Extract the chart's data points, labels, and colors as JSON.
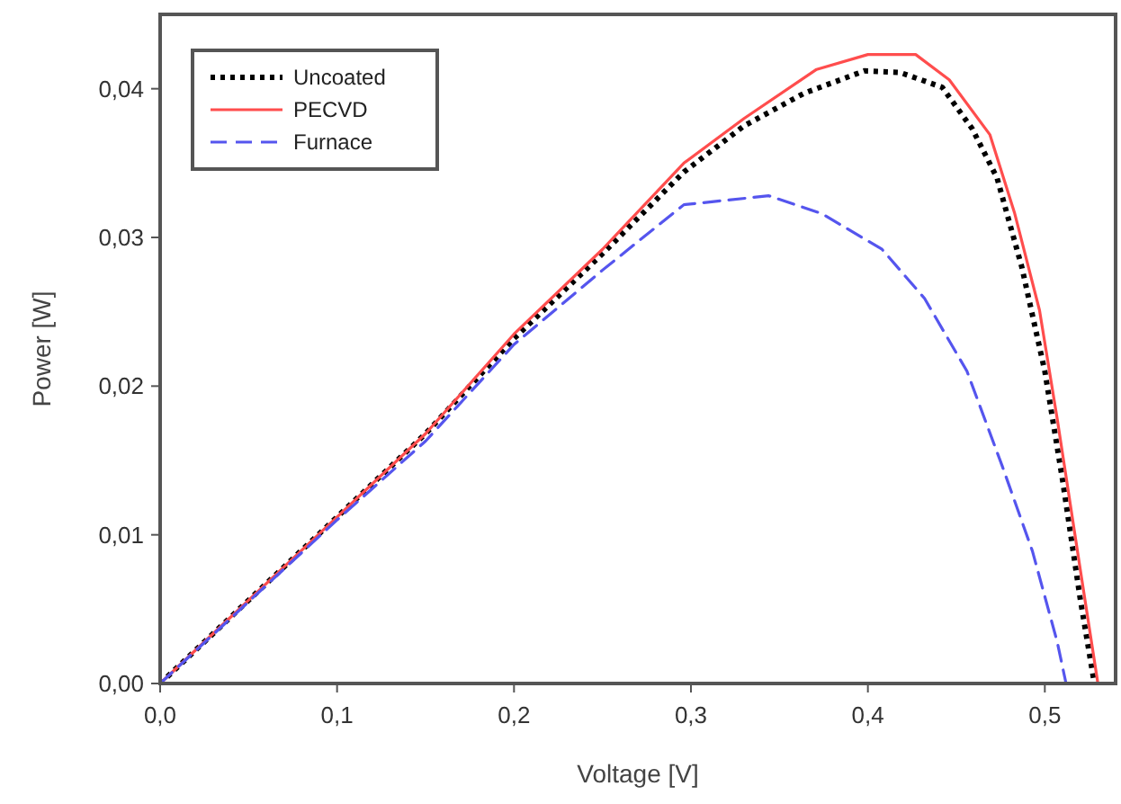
{
  "chart_data": {
    "type": "line",
    "xlabel": "Voltage [V]",
    "ylabel": "Power [W]",
    "xlim": [
      0,
      0.54
    ],
    "ylim": [
      0,
      0.045
    ],
    "xticks": [
      {
        "value": 0,
        "label": "0,0"
      },
      {
        "value": 0.1,
        "label": "0,1"
      },
      {
        "value": 0.2,
        "label": "0,2"
      },
      {
        "value": 0.3,
        "label": "0,3"
      },
      {
        "value": 0.4,
        "label": "0,4"
      },
      {
        "value": 0.5,
        "label": "0,5"
      }
    ],
    "yticks": [
      {
        "value": 0,
        "label": "0,00"
      },
      {
        "value": 0.01,
        "label": "0,01"
      },
      {
        "value": 0.02,
        "label": "0,02"
      },
      {
        "value": 0.03,
        "label": "0,03"
      },
      {
        "value": 0.04,
        "label": "0,04"
      }
    ],
    "grid": false,
    "legend": "top left",
    "series": [
      {
        "name": "Uncoated",
        "color": "#000000",
        "line_style": "dotted",
        "x": [
          0,
          0.05,
          0.1,
          0.15,
          0.2,
          0.25,
          0.296,
          0.33,
          0.364,
          0.398,
          0.418,
          0.442,
          0.459,
          0.473,
          0.487,
          0.5,
          0.51,
          0.52,
          0.528
        ],
        "values": [
          0,
          0.0056,
          0.0112,
          0.0168,
          0.0232,
          0.0289,
          0.0344,
          0.0375,
          0.0397,
          0.0412,
          0.0411,
          0.0401,
          0.0373,
          0.034,
          0.028,
          0.021,
          0.0137,
          0.0057,
          0
        ]
      },
      {
        "name": "PECVD",
        "color": "#ff4d4d",
        "line_style": "solid",
        "x": [
          0,
          0.05,
          0.1,
          0.15,
          0.2,
          0.25,
          0.296,
          0.33,
          0.371,
          0.4,
          0.427,
          0.446,
          0.469,
          0.483,
          0.497,
          0.507,
          0.52,
          0.53
        ],
        "values": [
          0,
          0.0056,
          0.0112,
          0.0168,
          0.0235,
          0.0292,
          0.035,
          0.038,
          0.0413,
          0.0423,
          0.0423,
          0.0406,
          0.0369,
          0.0316,
          0.0251,
          0.0178,
          0.0077,
          0
        ]
      },
      {
        "name": "Furnace",
        "color": "#5555ee",
        "line_style": "dashed",
        "x": [
          0,
          0.05,
          0.1,
          0.15,
          0.2,
          0.25,
          0.296,
          0.344,
          0.374,
          0.408,
          0.432,
          0.456,
          0.476,
          0.493,
          0.507,
          0.512
        ],
        "values": [
          0,
          0.0055,
          0.011,
          0.0163,
          0.0228,
          0.0278,
          0.0322,
          0.0328,
          0.0316,
          0.0292,
          0.0259,
          0.021,
          0.0146,
          0.0089,
          0.0028,
          0
        ]
      }
    ]
  }
}
